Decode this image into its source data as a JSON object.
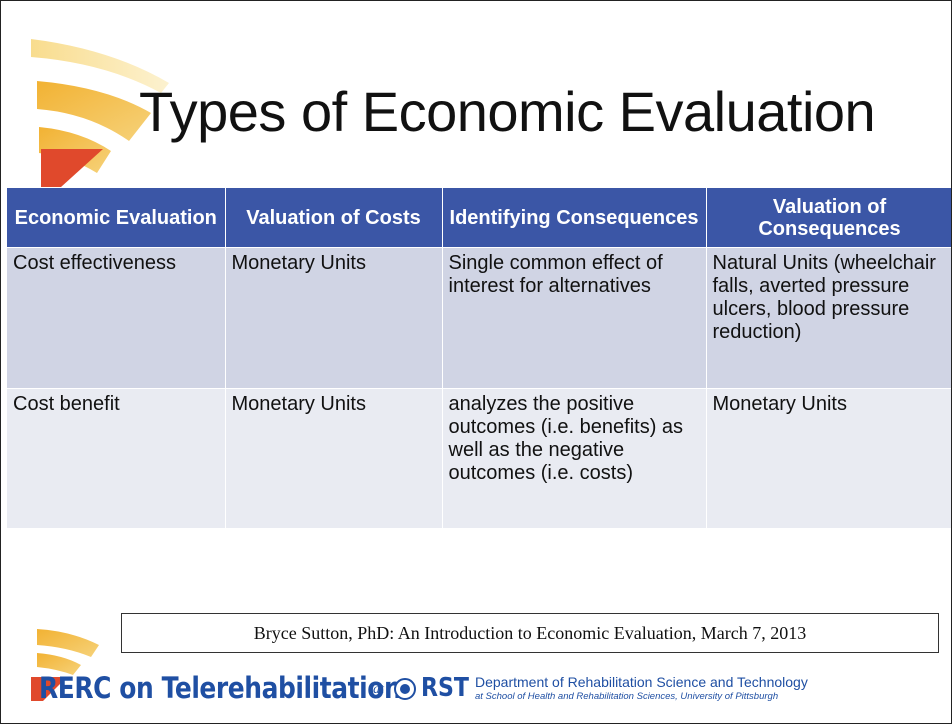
{
  "title": "Types of Economic Evaluation",
  "table": {
    "header": [
      "Economic Evaluation",
      "Valuation of Costs",
      "Identifying Consequences",
      "Valuation of Consequences"
    ],
    "rows": [
      [
        "Cost effectiveness",
        "Monetary Units",
        "Single common effect of interest for alternatives",
        "Natural Units (wheelchair falls, averted pressure ulcers, blood pressure reduction)"
      ],
      [
        "Cost benefit",
        "Monetary Units",
        "analyzes the positive outcomes (i.e. benefits) as well as the negative outcomes (i.e. costs)",
        "Monetary Units"
      ]
    ]
  },
  "footer": {
    "citation": "Bryce Sutton, PhD: An Introduction to Economic Evaluation, March 7, 2013",
    "brand": "RERC on Telerehabilitation",
    "at": "at",
    "logo": "RST",
    "department": "Department of Rehabilitation Science and Technology",
    "school": "at School of Health and Rehabilitation Sciences, University of Pittsburgh"
  }
}
